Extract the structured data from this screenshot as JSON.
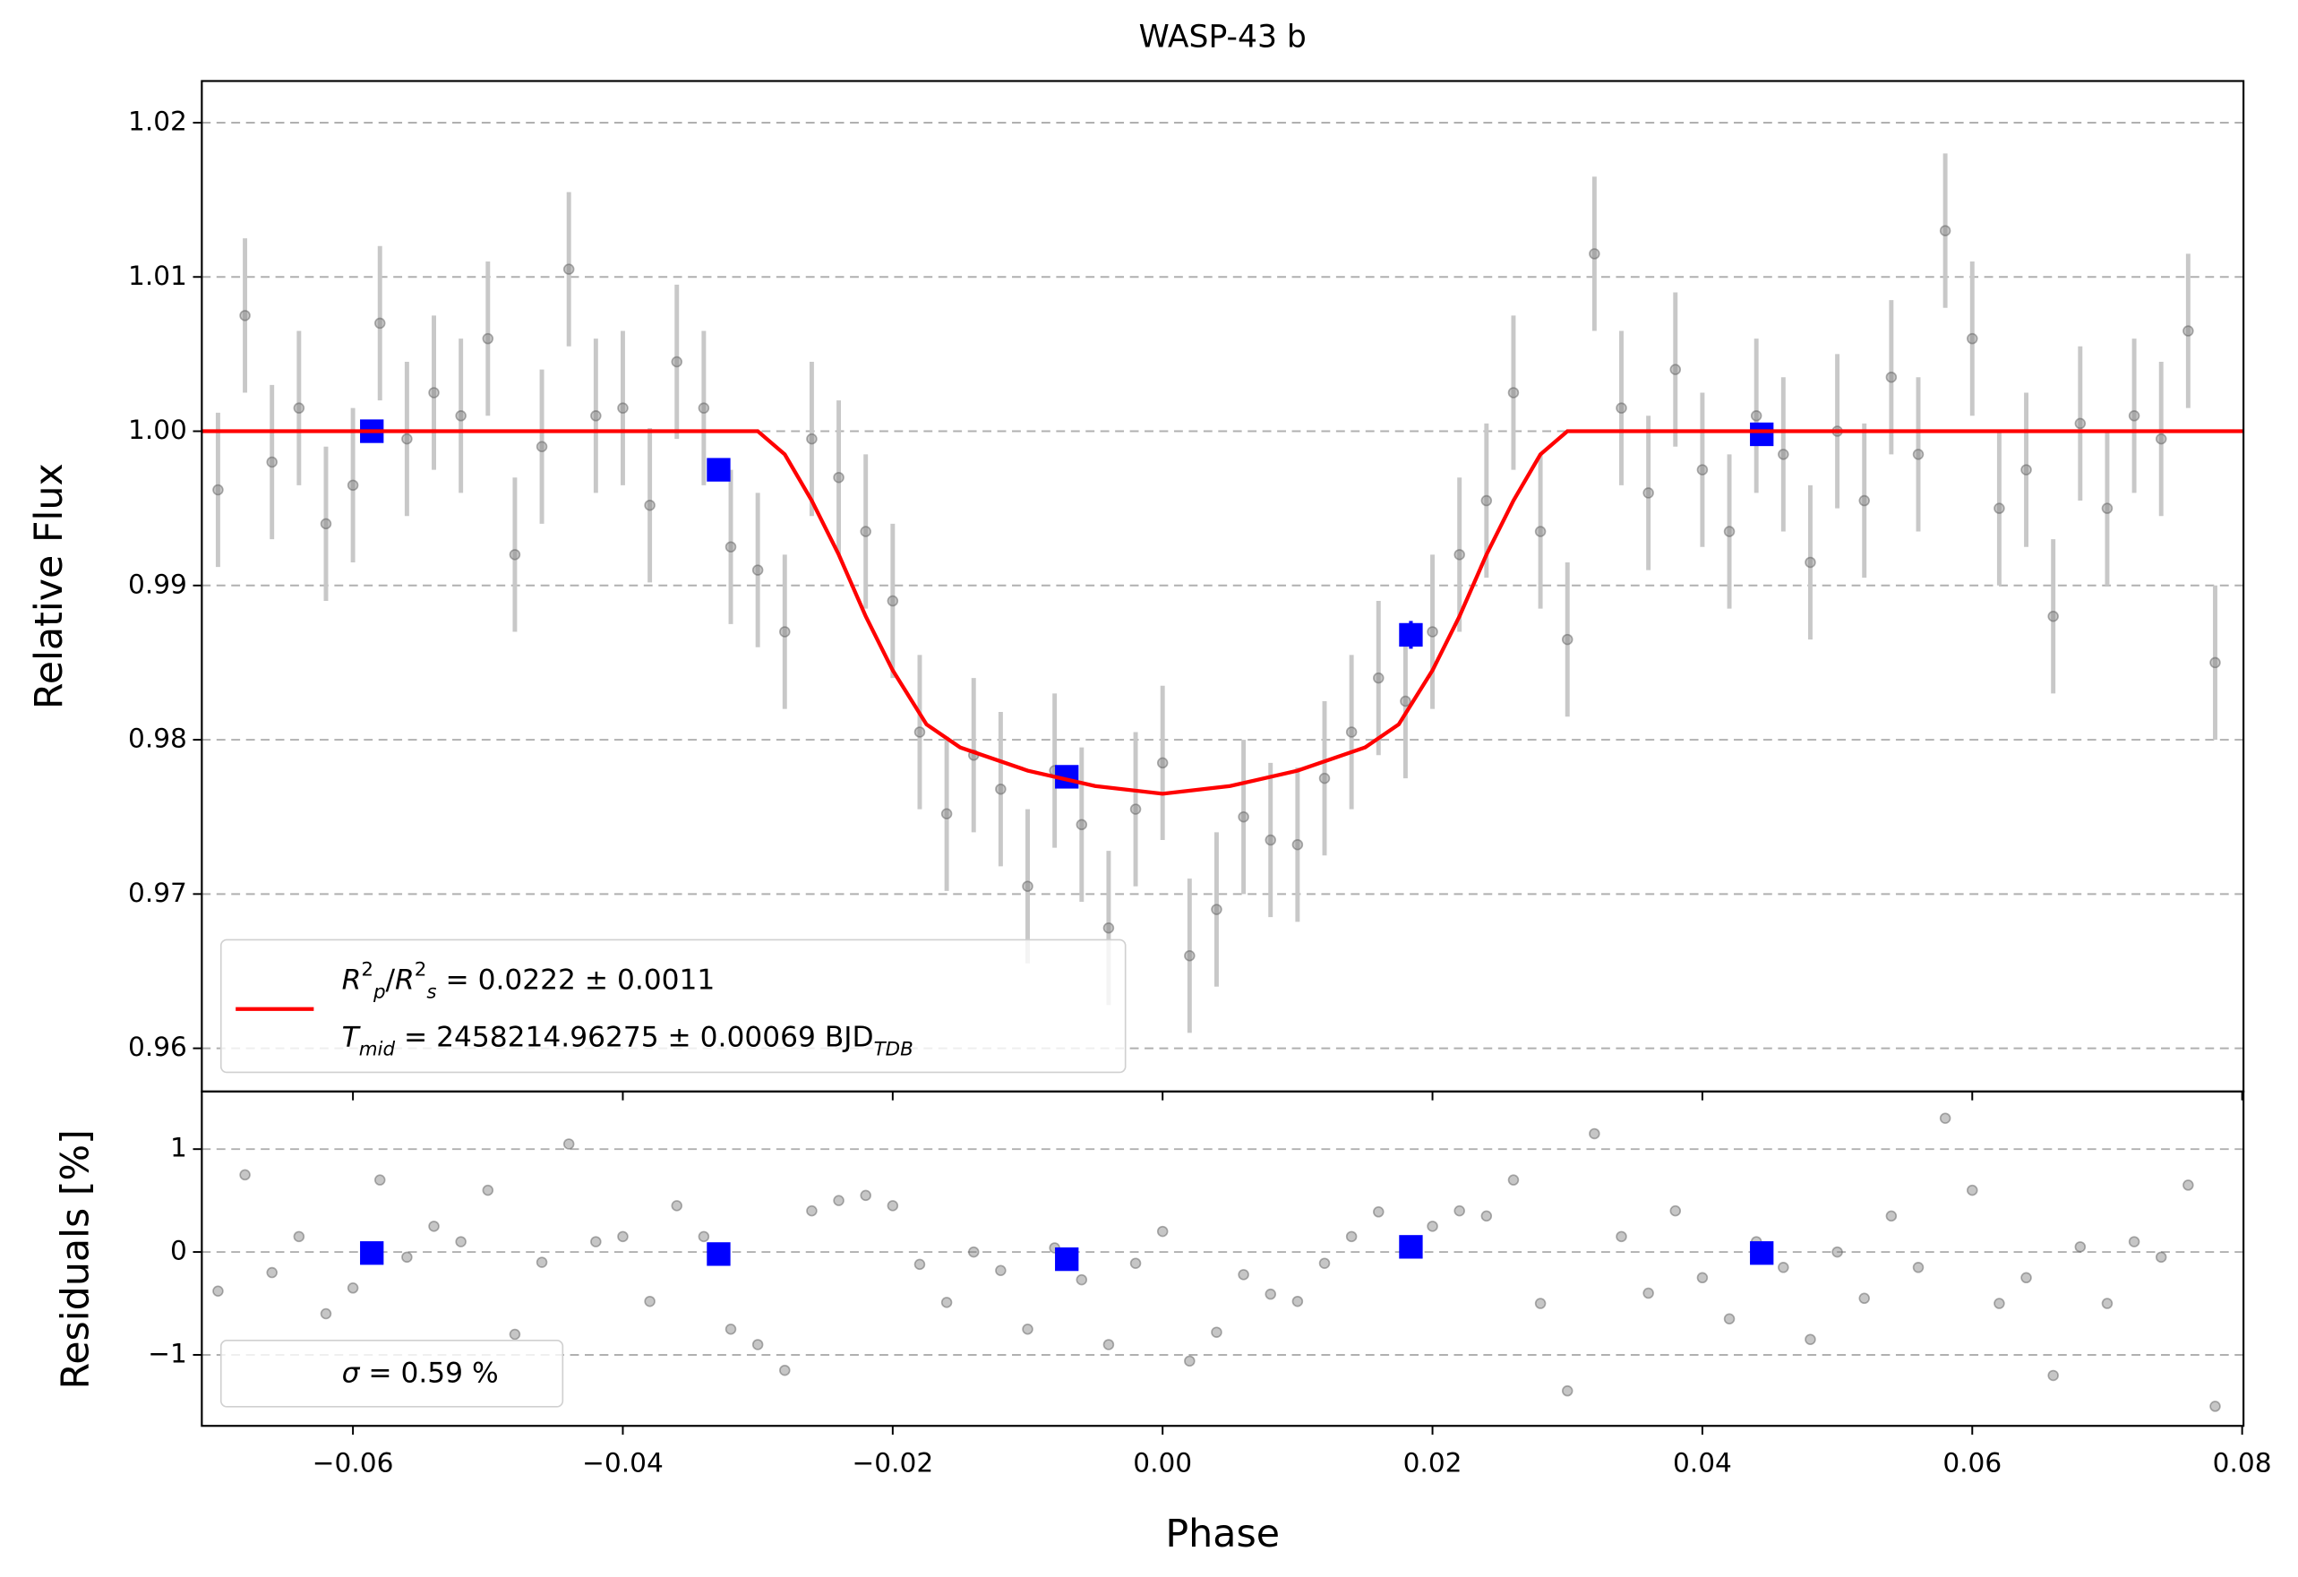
{
  "chart_data": [
    {
      "type": "scatter",
      "title": "WASP-43 b",
      "ylabel": "Relative Flux",
      "grid": true,
      "xlim": [
        -0.0712,
        0.0801
      ],
      "ylim": [
        0.9572,
        1.0227
      ],
      "xticks": [
        {
          "value": -0.06,
          "label": "−0.06"
        },
        {
          "value": -0.04,
          "label": "−0.04"
        },
        {
          "value": -0.02,
          "label": "−0.02"
        },
        {
          "value": 0,
          "label": "0.00"
        },
        0.02,
        0.04,
        0.06,
        0.08
      ],
      "yticks": [
        0.96,
        0.97,
        0.98,
        0.99,
        {
          "value": 1,
          "label": "1.00"
        },
        1.01,
        1.02
      ],
      "legend": "lower left",
      "series": [
        {
          "kind": "errorbar",
          "color": "#808080",
          "x": [
            -0.07,
            -0.068,
            -0.066,
            -0.064,
            -0.062,
            -0.06,
            -0.058,
            -0.056,
            -0.054,
            -0.052,
            -0.05,
            -0.048,
            -0.046,
            -0.044,
            -0.042,
            -0.04,
            -0.038,
            -0.036,
            -0.034,
            -0.032,
            -0.03,
            -0.028,
            -0.026,
            -0.024,
            -0.022,
            -0.02,
            -0.018,
            -0.016,
            -0.014,
            -0.012,
            -0.01,
            -0.008,
            -0.006,
            -0.004,
            -0.002,
            0.0,
            0.002,
            0.004,
            0.006,
            0.008,
            0.01,
            0.012,
            0.014,
            0.016,
            0.018,
            0.02,
            0.022,
            0.024,
            0.026,
            0.028,
            0.03,
            0.032,
            0.034,
            0.036,
            0.038,
            0.04,
            0.042,
            0.044,
            0.046,
            0.048,
            0.05,
            0.052,
            0.054,
            0.056,
            0.058,
            0.06,
            0.062,
            0.064,
            0.066,
            0.068,
            0.07,
            0.072,
            0.074,
            0.076,
            0.078
          ],
          "values": [
            0.9962,
            1.0075,
            0.998,
            1.0015,
            0.994,
            0.9965,
            1.007,
            0.9995,
            1.0025,
            1.001,
            1.006,
            0.992,
            0.999,
            1.0105,
            1.001,
            1.0015,
            0.9952,
            1.0045,
            1.0015,
            0.9925,
            0.991,
            0.987,
            0.9995,
            0.997,
            0.9935,
            0.989,
            0.9805,
            0.9752,
            0.979,
            0.9768,
            0.9705,
            0.978,
            0.9745,
            0.9678,
            0.9755,
            0.9785,
            0.966,
            0.969,
            0.975,
            0.9735,
            0.9732,
            0.9775,
            0.9805,
            0.984,
            0.9825,
            0.987,
            0.992,
            0.9955,
            1.0025,
            0.9935,
            0.9865,
            1.0115,
            1.0015,
            0.996,
            1.004,
            0.9975,
            0.9935,
            1.001,
            0.9985,
            0.9915,
            1.0,
            0.9955,
            1.0035,
            0.9985,
            1.013,
            1.006,
            0.995,
            0.9975,
            0.988,
            1.0005,
            0.995,
            1.001,
            0.9995,
            1.0065,
            0.985
          ],
          "errors": [
            0.005,
            0.005,
            0.005,
            0.005,
            0.005,
            0.005,
            0.005,
            0.005,
            0.005,
            0.005,
            0.005,
            0.005,
            0.005,
            0.005,
            0.005,
            0.005,
            0.005,
            0.005,
            0.005,
            0.005,
            0.005,
            0.005,
            0.005,
            0.005,
            0.005,
            0.005,
            0.005,
            0.005,
            0.005,
            0.005,
            0.005,
            0.005,
            0.005,
            0.005,
            0.005,
            0.005,
            0.005,
            0.005,
            0.005,
            0.005,
            0.005,
            0.005,
            0.005,
            0.005,
            0.005,
            0.005,
            0.005,
            0.005,
            0.005,
            0.005,
            0.005,
            0.005,
            0.005,
            0.005,
            0.005,
            0.005,
            0.005,
            0.005,
            0.005,
            0.005,
            0.005,
            0.005,
            0.005,
            0.005,
            0.005,
            0.005,
            0.005,
            0.005,
            0.005,
            0.005,
            0.005,
            0.005,
            0.005,
            0.005,
            0.005
          ]
        },
        {
          "kind": "binned",
          "color": "#0000ff",
          "x": [
            -0.0586,
            -0.0329,
            -0.0071,
            0.0184,
            0.0444
          ],
          "values": [
            1.0,
            0.9975,
            0.9776,
            0.9868,
            0.9998
          ],
          "errors": [
            0.0007,
            0.0007,
            0.0007,
            0.0009,
            0.0007
          ]
        },
        {
          "kind": "line",
          "color": "#ff0000",
          "label_parts": [
            {
              "text": "R",
              "italic": true
            },
            {
              "text": "2",
              "sup": true
            },
            {
              "text": "p",
              "sub": true,
              "italic": true
            },
            {
              "text": "/"
            },
            {
              "text": "R",
              "italic": true
            },
            {
              "text": "2",
              "sup": true
            },
            {
              "text": "s",
              "sub": true,
              "italic": true
            },
            {
              "text": " = 0.0222 ± 0.0011"
            }
          ],
          "label_parts_2": [
            {
              "text": "T",
              "italic": true
            },
            {
              "text": "mid",
              "sub": true,
              "italic": true
            },
            {
              "text": " = 2458214.96275 ± 0.00069 BJD"
            },
            {
              "text": "TDB",
              "sub": true,
              "italic": true
            }
          ],
          "x": [
            -0.0712,
            -0.03,
            -0.028,
            -0.026,
            -0.024,
            -0.022,
            -0.02,
            -0.0175,
            -0.015,
            -0.01,
            -0.005,
            0,
            0.005,
            0.01,
            0.015,
            0.0175,
            0.02,
            0.022,
            0.024,
            0.026,
            0.028,
            0.03,
            0.0801
          ],
          "values": [
            1,
            1,
            0.9985,
            0.9955,
            0.992,
            0.988,
            0.9845,
            0.981,
            0.9795,
            0.978,
            0.977,
            0.9765,
            0.977,
            0.978,
            0.9795,
            0.981,
            0.9845,
            0.988,
            0.992,
            0.9955,
            0.9985,
            1,
            1
          ]
        }
      ]
    },
    {
      "type": "scatter",
      "ylabel": "Residuals [%]",
      "xlabel": "Phase",
      "grid": true,
      "xlim": [
        -0.0712,
        0.0801
      ],
      "ylim": [
        -1.69,
        1.56
      ],
      "xticks": [
        {
          "value": -0.06,
          "label": "−0.06"
        },
        {
          "value": -0.04,
          "label": "−0.04"
        },
        {
          "value": -0.02,
          "label": "−0.02"
        },
        {
          "value": 0,
          "label": "0.00"
        },
        0.02,
        0.04,
        0.06,
        0.08
      ],
      "yticks": [
        {
          "value": -1,
          "label": "−1"
        },
        0,
        1
      ],
      "legend": "lower left",
      "legend_parts": [
        {
          "text": "σ",
          "italic": true
        },
        {
          "text": " = 0.59 %"
        }
      ],
      "series": [
        {
          "kind": "points",
          "color": "#808080",
          "values": [
            -0.38,
            0.75,
            -0.2,
            0.15,
            -0.6,
            -0.35,
            0.7,
            -0.05,
            0.25,
            0.1,
            0.6,
            -0.8,
            -0.1,
            1.05,
            0.1,
            0.15,
            -0.48,
            0.45,
            0.15,
            -0.75,
            -0.9,
            -1.15,
            0.4,
            0.5,
            0.55,
            0.45,
            -0.12,
            -0.49,
            0.0,
            -0.18,
            -0.75,
            0.04,
            -0.27,
            -0.9,
            -0.11,
            0.2,
            -1.06,
            -0.78,
            -0.22,
            -0.41,
            -0.48,
            -0.11,
            0.15,
            0.39,
            0.08,
            0.25,
            0.4,
            0.35,
            0.7,
            -0.5,
            -1.35,
            1.15,
            0.15,
            -0.4,
            0.4,
            -0.25,
            -0.65,
            0.1,
            -0.15,
            -0.85,
            0,
            -0.45,
            0.35,
            -0.15,
            1.3,
            0.6,
            -0.5,
            -0.25,
            -1.2,
            0.05,
            -0.5,
            0.1,
            -0.05,
            0.65,
            -1.5
          ]
        },
        {
          "kind": "binned",
          "color": "#0000ff",
          "values": [
            -0.01,
            -0.02,
            -0.07,
            0.05,
            -0.01
          ]
        }
      ]
    }
  ]
}
